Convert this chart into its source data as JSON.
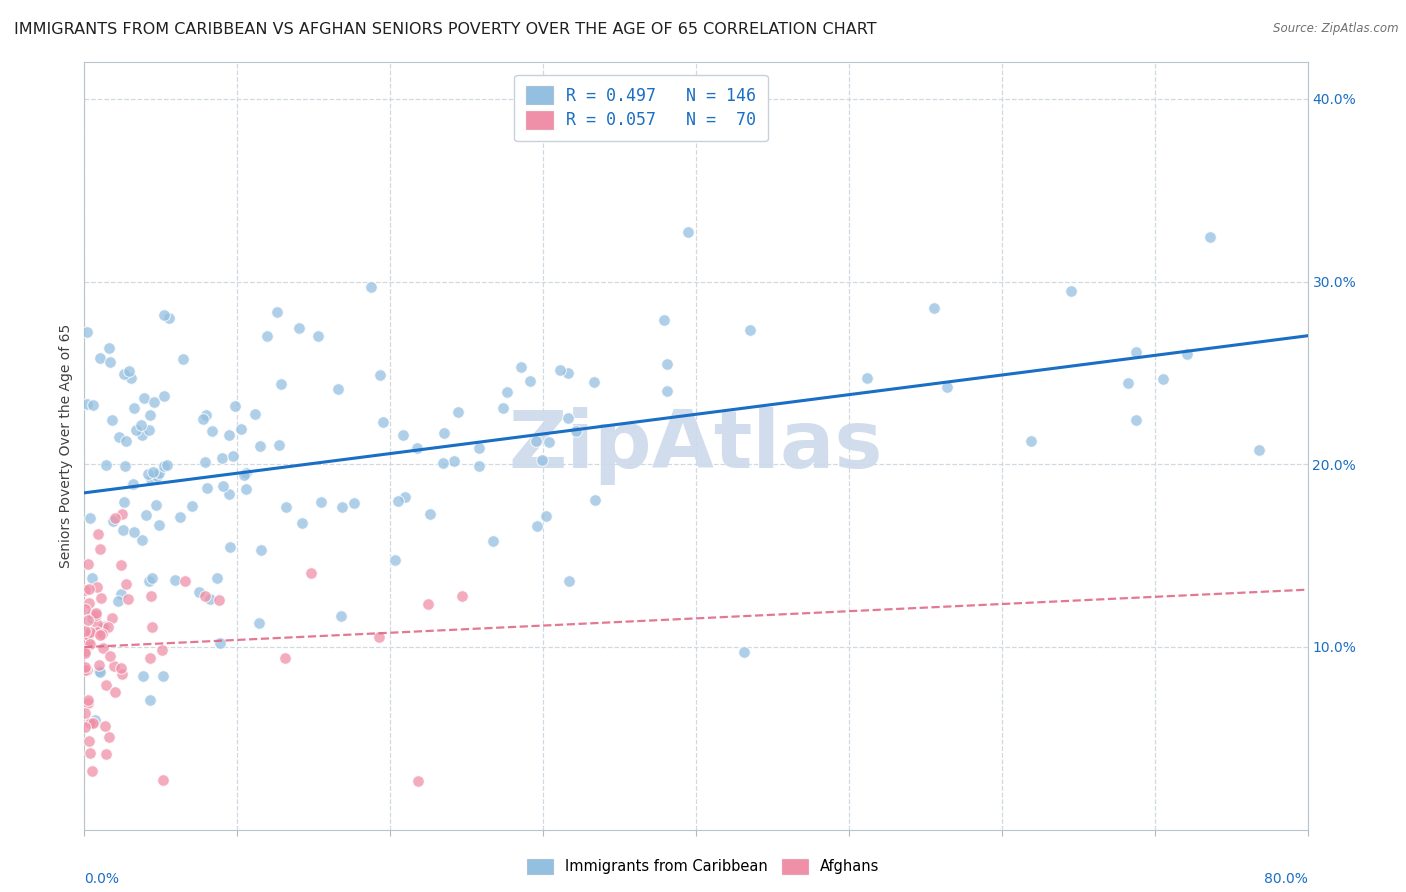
{
  "title": "IMMIGRANTS FROM CARIBBEAN VS AFGHAN SENIORS POVERTY OVER THE AGE OF 65 CORRELATION CHART",
  "source": "Source: ZipAtlas.com",
  "ylabel": "Seniors Poverty Over the Age of 65",
  "xmin": 0.0,
  "xmax": 0.8,
  "ymin": 0.0,
  "ymax": 0.42,
  "watermark": "ZipAtlas",
  "watermark_color": "#ccdaeb",
  "caribbean_color": "#93bfe0",
  "afghan_color": "#f090a8",
  "trend_caribbean_color": "#1a6fc4",
  "trend_afghan_color": "#e06080",
  "caribbean_N": 146,
  "afghan_N": 70,
  "grid_color": "#d0d8e0",
  "background_color": "#ffffff",
  "legend_text_color": "#1a6fc4",
  "title_fontsize": 11.5,
  "axis_label_fontsize": 10,
  "tick_fontsize": 10
}
